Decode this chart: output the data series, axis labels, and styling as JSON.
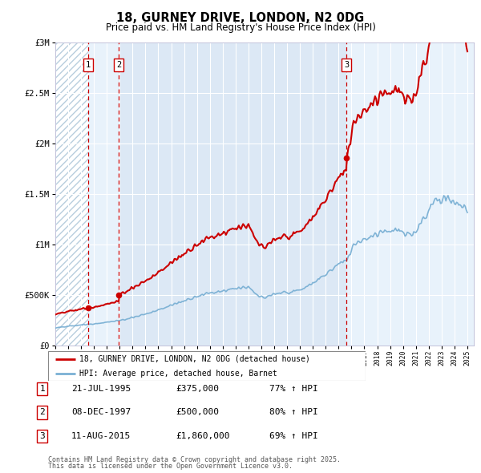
{
  "title": "18, GURNEY DRIVE, LONDON, N2 0DG",
  "subtitle": "Price paid vs. HM Land Registry's House Price Index (HPI)",
  "transactions": [
    {
      "label": "1",
      "date": "21-JUL-1995",
      "year": 1995.55,
      "price": 375000,
      "price_str": "£375,000",
      "pct": "77% ↑ HPI"
    },
    {
      "label": "2",
      "date": "08-DEC-1997",
      "year": 1997.93,
      "price": 500000,
      "price_str": "£500,000",
      "pct": "80% ↑ HPI"
    },
    {
      "label": "3",
      "date": "11-AUG-2015",
      "year": 2015.61,
      "price": 1860000,
      "price_str": "£1,860,000",
      "pct": "69% ↑ HPI"
    }
  ],
  "legend_line1": "18, GURNEY DRIVE, LONDON, N2 0DG (detached house)",
  "legend_line2": "HPI: Average price, detached house, Barnet",
  "footer_line1": "Contains HM Land Registry data © Crown copyright and database right 2025.",
  "footer_line2": "This data is licensed under the Open Government Licence v3.0.",
  "price_line_color": "#cc0000",
  "hpi_line_color": "#7ab0d4",
  "dot_color": "#cc0000",
  "dash_color": "#cc0000",
  "bg_color": "#dce8f5",
  "ylim": [
    0,
    3000000
  ],
  "xlim_start": 1993.0,
  "xlim_end": 2025.5,
  "yticks": [
    0,
    500000,
    1000000,
    1500000,
    2000000,
    2500000,
    3000000
  ],
  "ytick_labels": [
    "£0",
    "£500K",
    "£1M",
    "£1.5M",
    "£2M",
    "£2.5M",
    "£3M"
  ]
}
